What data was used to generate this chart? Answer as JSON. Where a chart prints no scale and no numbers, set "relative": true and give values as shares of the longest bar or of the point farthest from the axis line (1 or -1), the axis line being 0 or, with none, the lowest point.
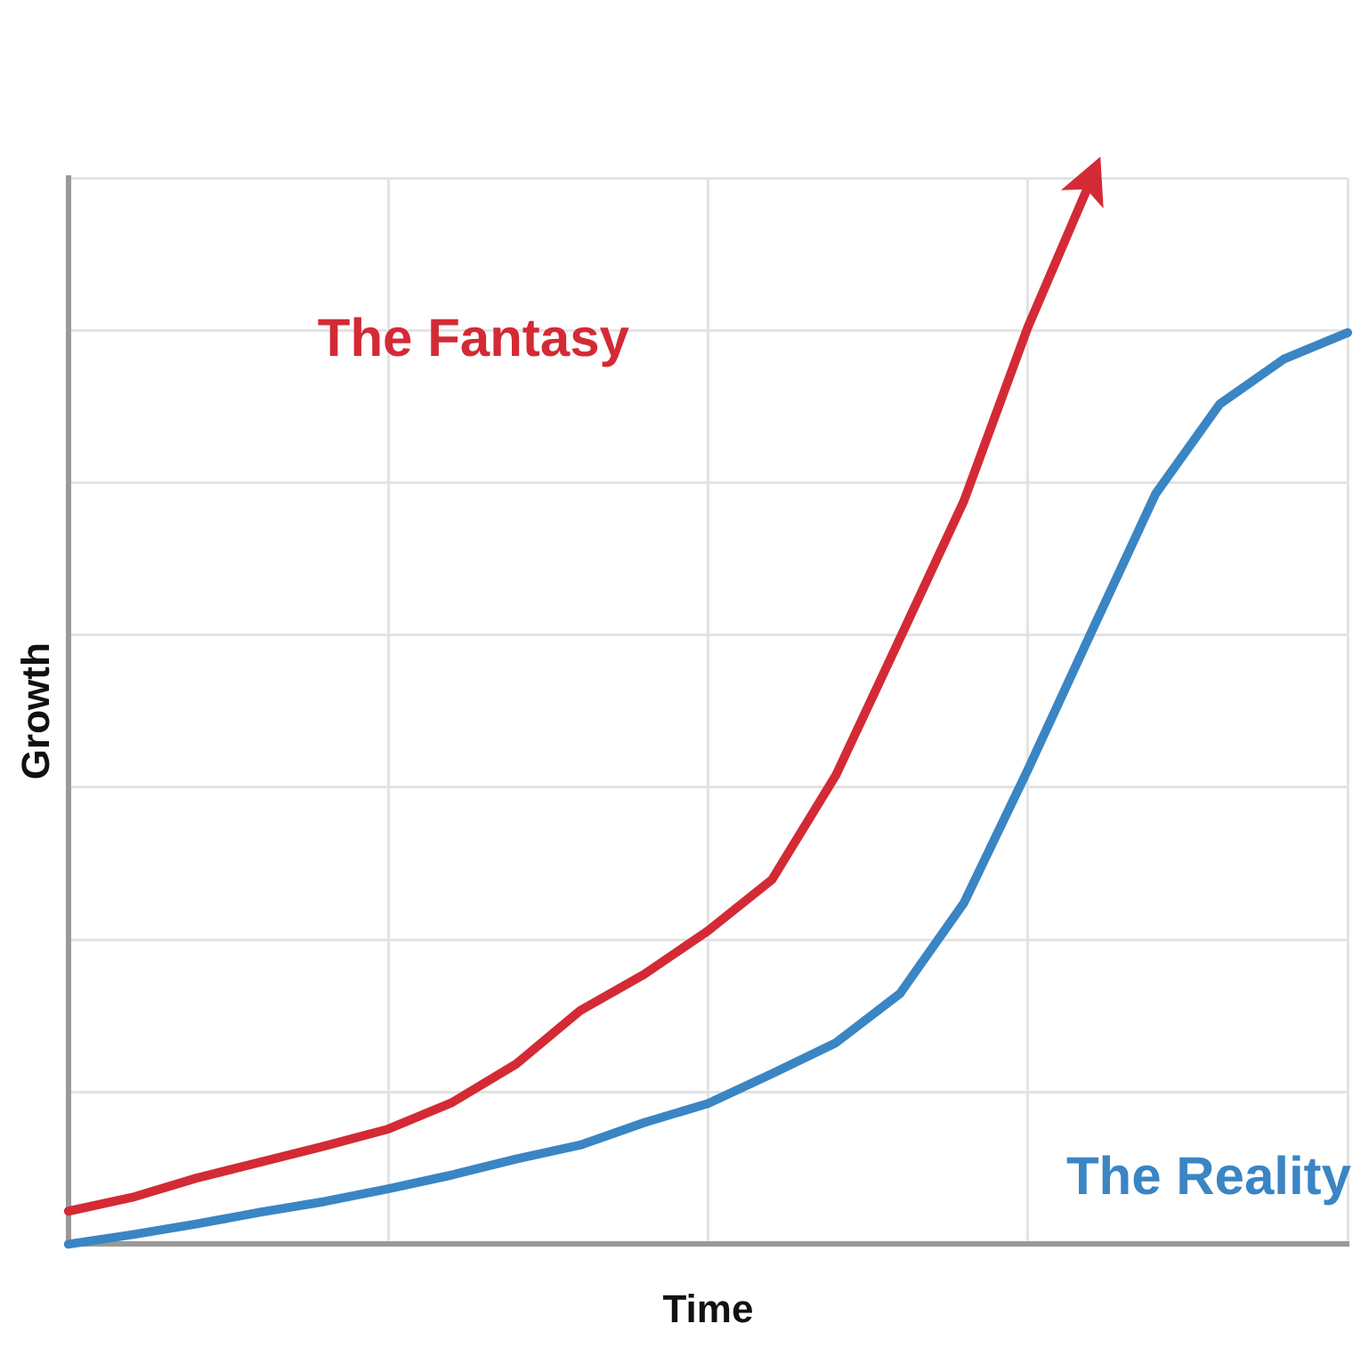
{
  "chart_data": {
    "type": "line",
    "xlabel": "Time",
    "ylabel": "Growth",
    "relative": true,
    "grid": true,
    "legend": false,
    "marker": "none",
    "line_style": "solid",
    "categories": [
      null,
      null,
      null,
      null,
      null,
      null,
      null,
      null,
      null,
      null,
      null,
      null,
      null,
      null,
      null,
      null,
      null,
      null,
      null,
      null,
      null
    ],
    "series": [
      {
        "name": "The Fantasy",
        "color": "#d42a35",
        "values": [
          0.031,
          0.044,
          0.062,
          0.077,
          0.092,
          0.108,
          0.133,
          0.169,
          0.219,
          0.253,
          0.294,
          0.342,
          0.44,
          0.568,
          0.697,
          0.86,
          1,
          null,
          null,
          null,
          null
        ]
      },
      {
        "name": "The Reality",
        "color": "#3a85c4",
        "values": [
          0,
          0.009,
          0.019,
          0.03,
          0.04,
          0.052,
          0.065,
          0.08,
          0.093,
          0.114,
          0.132,
          0.16,
          0.189,
          0.235,
          0.32,
          0.445,
          0.575,
          0.704,
          0.788,
          0.83,
          0.855
        ]
      }
    ]
  }
}
